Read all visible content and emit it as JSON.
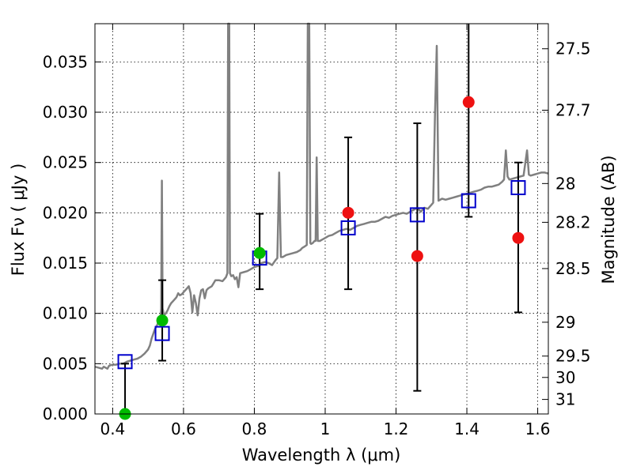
{
  "chart_data": {
    "type": "scatter",
    "xlabel": "Wavelength  λ (μm)",
    "ylabel": "Flux  Fν  ( μJy )",
    "y2label": "Magnitude (AB)",
    "xlim": [
      0.35,
      1.63
    ],
    "ylim": [
      0.0,
      0.0388
    ],
    "x_ticks": [
      0.4,
      0.6,
      0.8,
      1.0,
      1.2,
      1.4,
      1.6
    ],
    "x_tick_labels": [
      "0.4",
      "0.6",
      "0.8",
      "1",
      "1.2",
      "1.4",
      "1.6"
    ],
    "y_ticks": [
      0.0,
      0.005,
      0.01,
      0.015,
      0.02,
      0.025,
      0.03,
      0.035
    ],
    "y_tick_labels": [
      "0.000",
      "0.005",
      "0.010",
      "0.015",
      "0.020",
      "0.025",
      "0.030",
      "0.035"
    ],
    "mag_ticks": [
      27.5,
      27.7,
      28,
      28.2,
      28.5,
      29,
      29.5,
      30,
      31
    ],
    "mag_tick_labels": [
      "27.5",
      "27.7",
      "28",
      "28.2",
      "28.5",
      "29",
      "29.5",
      "30",
      "31"
    ],
    "grid": true,
    "spectrum": {
      "color": "#808080",
      "points": [
        [
          0.35,
          0.0047
        ],
        [
          0.36,
          0.0046
        ],
        [
          0.37,
          0.0045
        ],
        [
          0.375,
          0.0047
        ],
        [
          0.385,
          0.0045
        ],
        [
          0.39,
          0.0048
        ],
        [
          0.4,
          0.0049
        ],
        [
          0.41,
          0.0049
        ],
        [
          0.42,
          0.005
        ],
        [
          0.43,
          0.005
        ],
        [
          0.44,
          0.0052
        ],
        [
          0.45,
          0.0053
        ],
        [
          0.46,
          0.0054
        ],
        [
          0.47,
          0.0055
        ],
        [
          0.48,
          0.0057
        ],
        [
          0.49,
          0.006
        ],
        [
          0.5,
          0.0064
        ],
        [
          0.505,
          0.0068
        ],
        [
          0.51,
          0.0075
        ],
        [
          0.515,
          0.008
        ],
        [
          0.52,
          0.0085
        ],
        [
          0.525,
          0.0088
        ],
        [
          0.53,
          0.0092
        ],
        [
          0.535,
          0.0095
        ],
        [
          0.537,
          0.0105
        ],
        [
          0.539,
          0.0232
        ],
        [
          0.541,
          0.0105
        ],
        [
          0.545,
          0.0098
        ],
        [
          0.55,
          0.01
        ],
        [
          0.555,
          0.0103
        ],
        [
          0.56,
          0.0107
        ],
        [
          0.565,
          0.011
        ],
        [
          0.57,
          0.0112
        ],
        [
          0.575,
          0.0114
        ],
        [
          0.58,
          0.0116
        ],
        [
          0.585,
          0.012
        ],
        [
          0.59,
          0.0118
        ],
        [
          0.595,
          0.0119
        ],
        [
          0.6,
          0.0121
        ],
        [
          0.605,
          0.0123
        ],
        [
          0.61,
          0.0125
        ],
        [
          0.615,
          0.0127
        ],
        [
          0.62,
          0.012
        ],
        [
          0.625,
          0.0101
        ],
        [
          0.63,
          0.0118
        ],
        [
          0.635,
          0.011
        ],
        [
          0.64,
          0.0098
        ],
        [
          0.645,
          0.0115
        ],
        [
          0.65,
          0.0123
        ],
        [
          0.655,
          0.0124
        ],
        [
          0.66,
          0.0115
        ],
        [
          0.665,
          0.0123
        ],
        [
          0.67,
          0.0125
        ],
        [
          0.68,
          0.0127
        ],
        [
          0.69,
          0.0133
        ],
        [
          0.7,
          0.0133
        ],
        [
          0.71,
          0.0132
        ],
        [
          0.715,
          0.0134
        ],
        [
          0.72,
          0.0136
        ],
        [
          0.724,
          0.014
        ],
        [
          0.726,
          0.039
        ],
        [
          0.729,
          0.039
        ],
        [
          0.731,
          0.014
        ],
        [
          0.735,
          0.0137
        ],
        [
          0.74,
          0.0138
        ],
        [
          0.745,
          0.0134
        ],
        [
          0.75,
          0.0136
        ],
        [
          0.755,
          0.0126
        ],
        [
          0.76,
          0.014
        ],
        [
          0.77,
          0.0141
        ],
        [
          0.78,
          0.0142
        ],
        [
          0.79,
          0.0144
        ],
        [
          0.8,
          0.0146
        ],
        [
          0.81,
          0.0147
        ],
        [
          0.815,
          0.0148
        ],
        [
          0.82,
          0.015
        ],
        [
          0.83,
          0.0151
        ],
        [
          0.84,
          0.015
        ],
        [
          0.85,
          0.0148
        ],
        [
          0.86,
          0.0153
        ],
        [
          0.865,
          0.0155
        ],
        [
          0.87,
          0.024
        ],
        [
          0.875,
          0.0156
        ],
        [
          0.88,
          0.0156
        ],
        [
          0.89,
          0.0158
        ],
        [
          0.9,
          0.0159
        ],
        [
          0.91,
          0.016
        ],
        [
          0.92,
          0.0161
        ],
        [
          0.93,
          0.0163
        ],
        [
          0.935,
          0.0165
        ],
        [
          0.94,
          0.0166
        ],
        [
          0.948,
          0.0168
        ],
        [
          0.951,
          0.039
        ],
        [
          0.955,
          0.039
        ],
        [
          0.958,
          0.017
        ],
        [
          0.96,
          0.0169
        ],
        [
          0.965,
          0.017
        ],
        [
          0.97,
          0.0172
        ],
        [
          0.973,
          0.0172
        ],
        [
          0.976,
          0.0255
        ],
        [
          0.979,
          0.0172
        ],
        [
          0.985,
          0.0172
        ],
        [
          0.99,
          0.0173
        ],
        [
          1.0,
          0.0175
        ],
        [
          1.01,
          0.0177
        ],
        [
          1.02,
          0.0178
        ],
        [
          1.03,
          0.018
        ],
        [
          1.04,
          0.0182
        ],
        [
          1.05,
          0.0183
        ],
        [
          1.06,
          0.0184
        ],
        [
          1.07,
          0.0183
        ],
        [
          1.08,
          0.0185
        ],
        [
          1.09,
          0.0187
        ],
        [
          1.1,
          0.0188
        ],
        [
          1.11,
          0.0189
        ],
        [
          1.12,
          0.019
        ],
        [
          1.13,
          0.0191
        ],
        [
          1.14,
          0.0191
        ],
        [
          1.15,
          0.0192
        ],
        [
          1.16,
          0.0194
        ],
        [
          1.17,
          0.0196
        ],
        [
          1.18,
          0.0195
        ],
        [
          1.19,
          0.0197
        ],
        [
          1.2,
          0.0198
        ],
        [
          1.21,
          0.0199
        ],
        [
          1.22,
          0.02
        ],
        [
          1.23,
          0.0199
        ],
        [
          1.24,
          0.0201
        ],
        [
          1.25,
          0.0203
        ],
        [
          1.26,
          0.0205
        ],
        [
          1.27,
          0.0201
        ],
        [
          1.28,
          0.0205
        ],
        [
          1.29,
          0.0204
        ],
        [
          1.3,
          0.0208
        ],
        [
          1.305,
          0.021
        ],
        [
          1.31,
          0.03
        ],
        [
          1.315,
          0.0366
        ],
        [
          1.32,
          0.0212
        ],
        [
          1.33,
          0.0214
        ],
        [
          1.34,
          0.0213
        ],
        [
          1.35,
          0.0214
        ],
        [
          1.36,
          0.0215
        ],
        [
          1.37,
          0.0216
        ],
        [
          1.38,
          0.0217
        ],
        [
          1.39,
          0.0218
        ],
        [
          1.4,
          0.0219
        ],
        [
          1.41,
          0.022
        ],
        [
          1.42,
          0.0221
        ],
        [
          1.43,
          0.0222
        ],
        [
          1.44,
          0.0223
        ],
        [
          1.45,
          0.0225
        ],
        [
          1.46,
          0.0226
        ],
        [
          1.47,
          0.0226
        ],
        [
          1.48,
          0.0227
        ],
        [
          1.49,
          0.0228
        ],
        [
          1.5,
          0.0231
        ],
        [
          1.505,
          0.0233
        ],
        [
          1.51,
          0.0262
        ],
        [
          1.515,
          0.0236
        ],
        [
          1.52,
          0.0233
        ],
        [
          1.53,
          0.0234
        ],
        [
          1.54,
          0.0235
        ],
        [
          1.55,
          0.0236
        ],
        [
          1.56,
          0.0237
        ],
        [
          1.57,
          0.0262
        ],
        [
          1.575,
          0.0238
        ],
        [
          1.58,
          0.0237
        ],
        [
          1.59,
          0.0238
        ],
        [
          1.6,
          0.0239
        ],
        [
          1.61,
          0.024
        ],
        [
          1.62,
          0.024
        ],
        [
          1.63,
          0.0239
        ]
      ]
    },
    "model_points": {
      "marker": "open-square",
      "color": "#0000cc",
      "points": [
        [
          0.435,
          0.0052
        ],
        [
          0.54,
          0.008
        ],
        [
          0.815,
          0.0155
        ],
        [
          1.065,
          0.0185
        ],
        [
          1.26,
          0.0198
        ],
        [
          1.405,
          0.0212
        ],
        [
          1.545,
          0.0225
        ]
      ]
    },
    "detections": {
      "marker": "filled-circle",
      "color": "#00bb00",
      "points": [
        {
          "x": 0.435,
          "y": 0.0
        },
        {
          "x": 0.54,
          "y": 0.0093
        },
        {
          "x": 0.815,
          "y": 0.016
        }
      ]
    },
    "upper_points": {
      "marker": "filled-circle",
      "color": "#ee1111",
      "points": [
        {
          "x": 1.065,
          "y": 0.02
        },
        {
          "x": 1.26,
          "y": 0.0157
        },
        {
          "x": 1.405,
          "y": 0.031
        },
        {
          "x": 1.545,
          "y": 0.0175
        }
      ]
    },
    "error_bars": [
      {
        "x": 0.435,
        "low": 0.0,
        "high": 0.005
      },
      {
        "x": 0.54,
        "low": 0.0053,
        "high": 0.0133
      },
      {
        "x": 0.815,
        "low": 0.0124,
        "high": 0.0199
      },
      {
        "x": 1.065,
        "low": 0.0124,
        "high": 0.0275
      },
      {
        "x": 1.26,
        "low": 0.0023,
        "high": 0.0289
      },
      {
        "x": 1.405,
        "low": 0.0196,
        "high": 0.039
      },
      {
        "x": 1.545,
        "low": 0.0101,
        "high": 0.025
      }
    ]
  }
}
